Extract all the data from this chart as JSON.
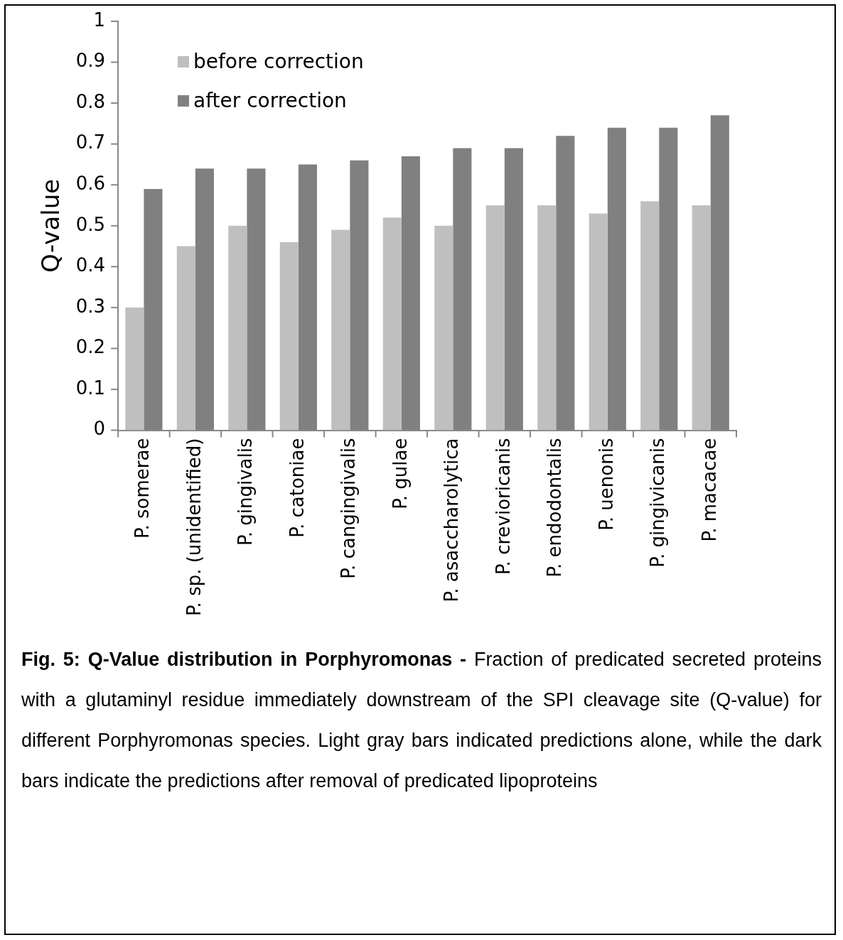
{
  "chart_data": {
    "type": "bar",
    "ylabel": "Q-value",
    "categories": [
      "P. somerae",
      "P. sp. (unidentified)",
      "P. gingivalis",
      "P. catoniae",
      "P. cangingivalis",
      "P. gulae",
      "P. asaccharolytica",
      "P. crevioricanis",
      "P. endodontalis",
      "P. uenonis",
      "P. gingivicanis",
      "P. macacae"
    ],
    "series": [
      {
        "name": "before correction",
        "color": "#bfbfbf",
        "values": [
          0.3,
          0.45,
          0.5,
          0.46,
          0.49,
          0.52,
          0.5,
          0.55,
          0.55,
          0.53,
          0.56,
          0.55
        ]
      },
      {
        "name": "after correction",
        "color": "#808080",
        "values": [
          0.59,
          0.64,
          0.64,
          0.65,
          0.66,
          0.67,
          0.69,
          0.69,
          0.72,
          0.74,
          0.74,
          0.77
        ]
      }
    ],
    "ylim": [
      0,
      1
    ],
    "yticks": [
      0,
      0.1,
      0.2,
      0.3,
      0.4,
      0.5,
      0.6,
      0.7,
      0.8,
      0.9,
      1
    ],
    "grid": false,
    "legend": "top left",
    "annotations": [
      "Fig. 5: Q-Value distribution in Porphyromonas -",
      "Fraction of predicated secreted proteins with a glutaminyl residue immediately downstream of the SPI cleavage site (Q-value) for different Porphyromonas species. Light gray bars indicated predictions alone, while the dark bars indicate the predictions after removal of predicated lipoproteins"
    ]
  }
}
